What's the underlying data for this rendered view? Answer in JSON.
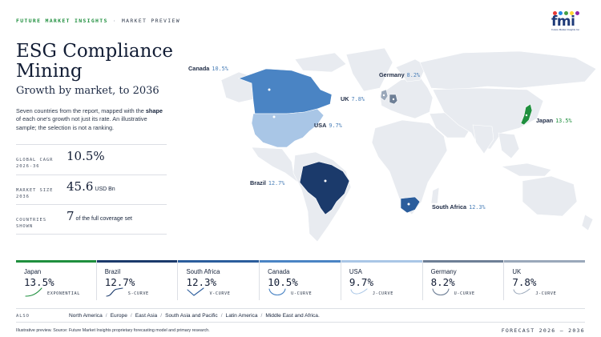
{
  "header": {
    "brand": "FUTURE MARKET INSIGHTS",
    "separator": "·",
    "section": "MARKET PREVIEW",
    "logo_text": "fmi",
    "logo_tagline": "Future Market Insights Inc.",
    "logo_dot_colors": [
      "#e53935",
      "#1e88e5",
      "#43a047",
      "#fdd835",
      "#8e24aa"
    ]
  },
  "title": "ESG Compliance Mining",
  "subtitle": "Growth by market, to 2036",
  "description": {
    "before": "Seven countries from the report, mapped with the ",
    "bold": "shape",
    "after": " of each one's growth not just its rate. An illustrative sample; the selection is not a ranking."
  },
  "stats": [
    {
      "label": "GLOBAL CAGR 2026-36",
      "value": "10.5%",
      "unit": ""
    },
    {
      "label": "MARKET SIZE 2036",
      "value": "45.6",
      "unit": "USD Bn"
    },
    {
      "label": "COUNTRIES SHOWN",
      "value": "7",
      "unit": "of the full coverage set"
    }
  ],
  "chart_data": {
    "type": "table",
    "title": "ESG Compliance Mining",
    "subtitle": "Growth by market, to 2036",
    "columns": [
      "country",
      "cagr",
      "curve"
    ],
    "rows": [
      {
        "country": "Japan",
        "cagr": 13.5,
        "label": "13.5%",
        "curve": "EXPONENTIAL",
        "color": "#1f8f3e"
      },
      {
        "country": "Brazil",
        "cagr": 12.7,
        "label": "12.7%",
        "curve": "S-CURVE",
        "color": "#1b3a6b"
      },
      {
        "country": "South Africa",
        "cagr": 12.3,
        "label": "12.3%",
        "curve": "V-CURVE",
        "color": "#2b5d9c"
      },
      {
        "country": "Canada",
        "cagr": 10.5,
        "label": "10.5%",
        "curve": "U-CURVE",
        "color": "#4a84c4"
      },
      {
        "country": "USA",
        "cagr": 9.7,
        "label": "9.7%",
        "curve": "J-CURVE",
        "color": "#a9c6e6"
      },
      {
        "country": "Germany",
        "cagr": 8.2,
        "label": "8.2%",
        "curve": "U-CURVE",
        "color": "#6e7f96"
      },
      {
        "country": "UK",
        "cagr": 7.8,
        "label": "7.8%",
        "curve": "J-CURVE",
        "color": "#9aa8ba"
      }
    ]
  },
  "map_labels": {
    "canada": {
      "name": "Canada",
      "value": "10.5%"
    },
    "germany": {
      "name": "Germany",
      "value": "8.2%"
    },
    "uk": {
      "name": "UK",
      "value": "7.8%"
    },
    "usa": {
      "name": "USA",
      "value": "9.7%"
    },
    "japan": {
      "name": "Japan",
      "value": "13.5%"
    },
    "brazil": {
      "name": "Brazil",
      "value": "12.7%"
    },
    "south_africa": {
      "name": "South Africa",
      "value": "12.3%"
    }
  },
  "also": {
    "label": "ALSO",
    "regions": [
      "North America",
      "Europe",
      "East Asia",
      "South Asia and Pacific",
      "Latin America",
      "Middle East and Africa."
    ]
  },
  "footer": {
    "source": "Illustrative preview. Source: Future Market Insights proprietary forecasting model and primary research.",
    "forecast": "FORECAST 2026 – 2036"
  }
}
